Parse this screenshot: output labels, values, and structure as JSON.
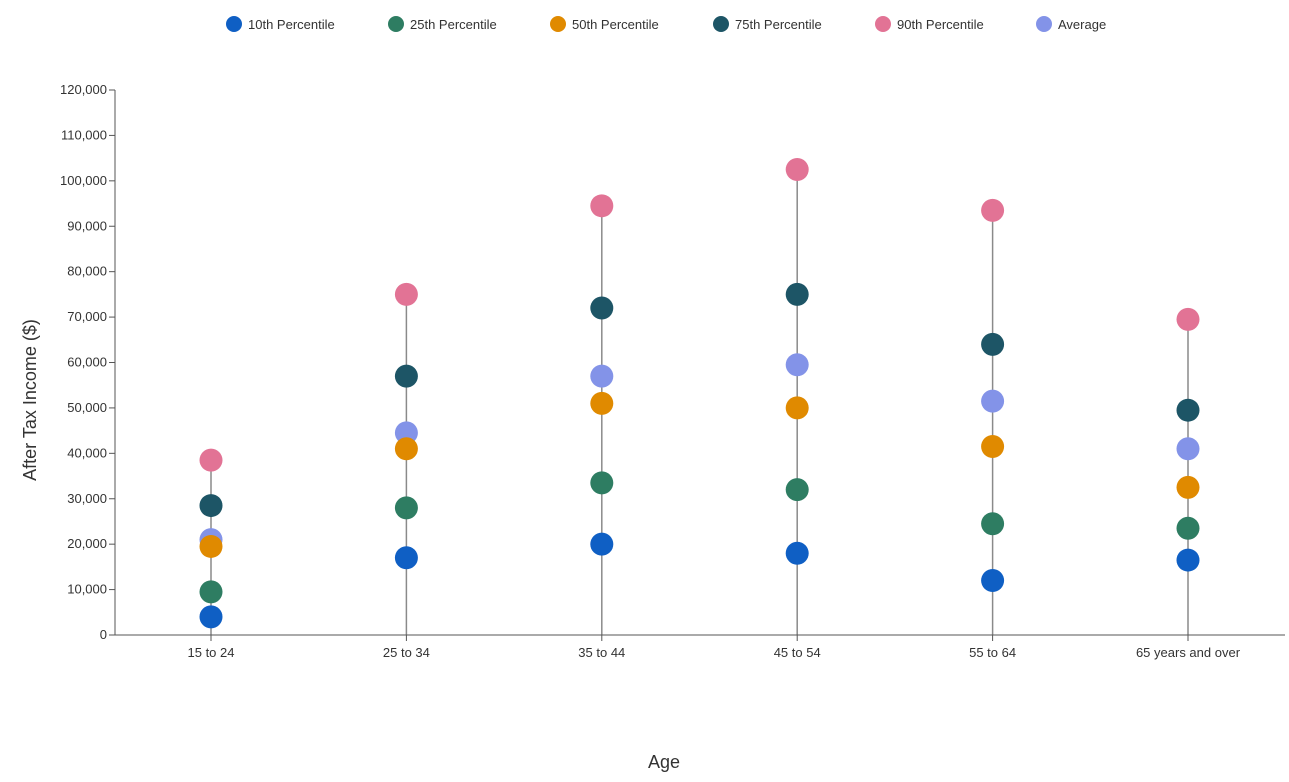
{
  "chart_data": {
    "type": "scatter",
    "title": "",
    "xlabel": "Age",
    "ylabel": "After Tax Income ($)",
    "categories": [
      "15 to 24",
      "25 to 34",
      "35 to 44",
      "45 to 54",
      "55 to 64",
      "65 years and over"
    ],
    "ylim": [
      0,
      120000
    ],
    "yticks": [
      0,
      10000,
      20000,
      30000,
      40000,
      50000,
      60000,
      70000,
      80000,
      90000,
      100000,
      110000,
      120000
    ],
    "ytick_labels": [
      "0",
      "10,000",
      "20,000",
      "30,000",
      "40,000",
      "50,000",
      "60,000",
      "70,000",
      "80,000",
      "90,000",
      "100,000",
      "110,000",
      "120,000"
    ],
    "grid": false,
    "legend_position": "top-center",
    "series": [
      {
        "name": "10th Percentile",
        "color": "#0f5fc4",
        "values": [
          4000,
          17000,
          20000,
          18000,
          12000,
          16500
        ]
      },
      {
        "name": "25th Percentile",
        "color": "#2e7d62",
        "values": [
          9500,
          28000,
          33500,
          32000,
          24500,
          23500
        ]
      },
      {
        "name": "50th Percentile",
        "color": "#e08a00",
        "values": [
          19500,
          41000,
          51000,
          50000,
          41500,
          32500
        ]
      },
      {
        "name": "75th Percentile",
        "color": "#1d5566",
        "values": [
          28500,
          57000,
          72000,
          75000,
          64000,
          49500
        ]
      },
      {
        "name": "90th Percentile",
        "color": "#e27395",
        "values": [
          38500,
          75000,
          94500,
          102500,
          93500,
          69500
        ]
      },
      {
        "name": "Average",
        "color": "#8393e8",
        "values": [
          21000,
          44500,
          57000,
          59500,
          51500,
          41000
        ]
      }
    ]
  }
}
